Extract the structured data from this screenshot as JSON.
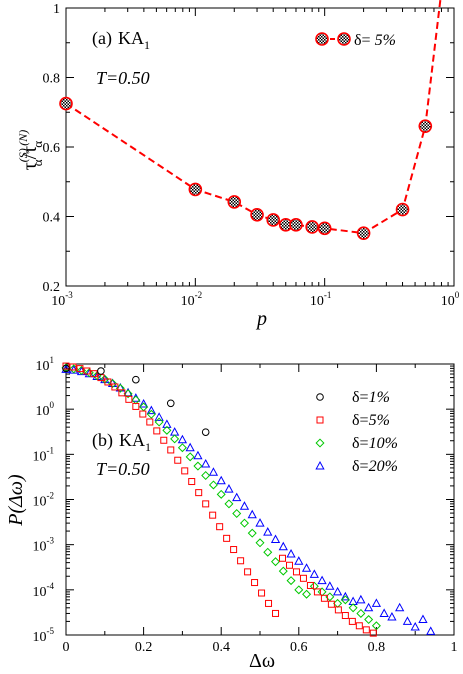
{
  "chart_data": [
    {
      "type": "line",
      "panel_label": "(a)",
      "system_label_main": "KA",
      "system_label_sub": "1",
      "temperature_label": "T=0.50",
      "xlabel": "p",
      "ylabel_main": "τ",
      "ylabel_sup_num": "(S)",
      "ylabel_sub": "α",
      "ylabel_slash": "/",
      "ylabel_sup_den": "(N)",
      "xscale": "log",
      "xlim": [
        0.001,
        1
      ],
      "ylim": [
        0.2,
        1.0
      ],
      "x_ticks": [
        {
          "base": "10",
          "exp": "-3",
          "value": 0.001
        },
        {
          "base": "10",
          "exp": "-2",
          "value": 0.01
        },
        {
          "base": "10",
          "exp": "-1",
          "value": 0.1
        },
        {
          "base": "10",
          "exp": "0",
          "value": 1
        }
      ],
      "y_ticks": [
        {
          "label": "0.2",
          "value": 0.2
        },
        {
          "label": "0.4",
          "value": 0.4
        },
        {
          "label": "0.6",
          "value": 0.6
        },
        {
          "label": "0.8",
          "value": 0.8
        },
        {
          "label": "1",
          "value": 1.0
        }
      ],
      "legend_placement": "top-right",
      "series": [
        {
          "name": "δ= 5%",
          "name_delta": "δ=",
          "name_value": " 5%",
          "color": "#ff0000",
          "marker": "hatched-circle",
          "line_style": "dashed",
          "x": [
            0.001,
            0.01,
            0.02,
            0.03,
            0.04,
            0.05,
            0.06,
            0.08,
            0.1,
            0.2,
            0.4,
            0.6
          ],
          "y": [
            0.725,
            0.478,
            0.442,
            0.405,
            0.39,
            0.376,
            0.376,
            0.37,
            0.366,
            0.352,
            0.42,
            0.66
          ]
        }
      ],
      "curve_extension": {
        "x": 0.8,
        "y": 1.05
      }
    },
    {
      "type": "scatter",
      "panel_label": "(b)",
      "system_label_main": "KA",
      "system_label_sub": "1",
      "temperature_label": "T=0.50",
      "xlabel": "Δω",
      "ylabel": "P(Δω)",
      "yscale": "log",
      "xlim": [
        0,
        1
      ],
      "ylim": [
        1e-05,
        10
      ],
      "x_ticks": [
        {
          "label": "0",
          "value": 0
        },
        {
          "label": "0.2",
          "value": 0.2
        },
        {
          "label": "0.4",
          "value": 0.4
        },
        {
          "label": "0.6",
          "value": 0.6
        },
        {
          "label": "0.8",
          "value": 0.8
        },
        {
          "label": "1",
          "value": 1
        }
      ],
      "y_ticks": [
        {
          "base": "10",
          "exp": "-5",
          "value": 1e-05
        },
        {
          "base": "10",
          "exp": "-4",
          "value": 0.0001
        },
        {
          "base": "10",
          "exp": "-3",
          "value": 0.001
        },
        {
          "base": "10",
          "exp": "-2",
          "value": 0.01
        },
        {
          "base": "10",
          "exp": "-1",
          "value": 0.1
        },
        {
          "base": "10",
          "exp": "0",
          "value": 1
        },
        {
          "base": "10",
          "exp": "1",
          "value": 10
        }
      ],
      "legend_placement": "top-right",
      "series": [
        {
          "name": "δ=1%",
          "name_delta": "δ=",
          "name_value": "1%",
          "color": "#000000",
          "marker": "circle",
          "x": [
            0.0,
            0.09,
            0.18,
            0.27,
            0.36
          ],
          "y": [
            8.0,
            7.0,
            4.5,
            1.35,
            0.31
          ]
        },
        {
          "name": "δ=5%",
          "name_delta": "δ=",
          "name_value": "5%",
          "color": "#ff0000",
          "marker": "square",
          "x": [
            0.0,
            0.018,
            0.036,
            0.054,
            0.072,
            0.09,
            0.108,
            0.126,
            0.144,
            0.162,
            0.18,
            0.198,
            0.216,
            0.234,
            0.252,
            0.27,
            0.288,
            0.306,
            0.324,
            0.342,
            0.36,
            0.378,
            0.396,
            0.414,
            0.432,
            0.45,
            0.468,
            0.486,
            0.504,
            0.522,
            0.54,
            0.558,
            0.576,
            0.594,
            0.612,
            0.63,
            0.648,
            0.666,
            0.684,
            0.702,
            0.72,
            0.738,
            0.756,
            0.774,
            0.792
          ],
          "y": [
            9.0,
            8.6,
            7.9,
            7.0,
            6.1,
            5.0,
            4.0,
            3.1,
            2.3,
            1.65,
            1.15,
            0.78,
            0.52,
            0.33,
            0.205,
            0.125,
            0.074,
            0.043,
            0.025,
            0.0142,
            0.008,
            0.0045,
            0.0025,
            0.00138,
            0.00078,
            0.00044,
            0.00025,
            0.000145,
            8.5e-05,
            5e-05,
            3e-05,
            0.0005,
            0.00035,
            0.00025,
            0.00018,
            0.000125,
            9e-05,
            6.5e-05,
            4.8e-05,
            3.6e-05,
            2.7e-05,
            2e-05,
            1.6e-05,
            1.3e-05,
            1.1e-05
          ]
        },
        {
          "name": "δ=10%",
          "name_delta": "δ=",
          "name_value": "10%",
          "color": "#00c800",
          "marker": "diamond",
          "x": [
            0.0,
            0.02,
            0.04,
            0.06,
            0.08,
            0.1,
            0.12,
            0.14,
            0.16,
            0.18,
            0.2,
            0.22,
            0.24,
            0.26,
            0.28,
            0.3,
            0.32,
            0.34,
            0.36,
            0.38,
            0.4,
            0.42,
            0.44,
            0.46,
            0.48,
            0.5,
            0.52,
            0.54,
            0.56,
            0.58,
            0.6,
            0.62,
            0.64,
            0.66,
            0.68,
            0.7,
            0.72,
            0.74,
            0.76,
            0.78,
            0.8
          ],
          "y": [
            8.2,
            7.8,
            7.2,
            6.4,
            5.5,
            4.6,
            3.7,
            2.9,
            2.2,
            1.6,
            1.12,
            0.77,
            0.52,
            0.34,
            0.22,
            0.14,
            0.088,
            0.055,
            0.034,
            0.021,
            0.013,
            0.008,
            0.0049,
            0.003,
            0.0018,
            0.0011,
            0.00068,
            0.00042,
            0.00026,
            0.00016,
            0.0001,
            8e-05,
            0.00012,
            9e-05,
            7e-05,
            5e-05,
            6e-05,
            4e-05,
            3e-05,
            2.2e-05,
            1.6e-05
          ]
        },
        {
          "name": "δ=20%",
          "name_delta": "δ=",
          "name_value": "20%",
          "color": "#0000ff",
          "marker": "triangle",
          "x": [
            0.0,
            0.02,
            0.04,
            0.06,
            0.08,
            0.1,
            0.12,
            0.14,
            0.16,
            0.18,
            0.2,
            0.22,
            0.24,
            0.26,
            0.28,
            0.3,
            0.32,
            0.34,
            0.36,
            0.38,
            0.4,
            0.42,
            0.44,
            0.46,
            0.48,
            0.5,
            0.52,
            0.54,
            0.56,
            0.58,
            0.6,
            0.62,
            0.64,
            0.66,
            0.68,
            0.7,
            0.72,
            0.74,
            0.76,
            0.78,
            0.8,
            0.82,
            0.84,
            0.86,
            0.88,
            0.9,
            0.92,
            0.94
          ],
          "y": [
            7.6,
            7.3,
            6.8,
            6.1,
            5.3,
            4.5,
            3.7,
            2.95,
            2.3,
            1.75,
            1.3,
            0.93,
            0.66,
            0.46,
            0.31,
            0.21,
            0.14,
            0.093,
            0.061,
            0.04,
            0.026,
            0.017,
            0.011,
            0.0071,
            0.0046,
            0.003,
            0.0019,
            0.0013,
            0.0009,
            0.00062,
            0.00043,
            0.0003,
            0.00022,
            0.00016,
            0.00012,
            9e-05,
            7e-05,
            5.5e-05,
            6e-05,
            4e-05,
            5e-05,
            3e-05,
            2.5e-05,
            4e-05,
            2e-05,
            1.5e-05,
            2.2e-05,
            1.2e-05
          ]
        }
      ]
    }
  ]
}
